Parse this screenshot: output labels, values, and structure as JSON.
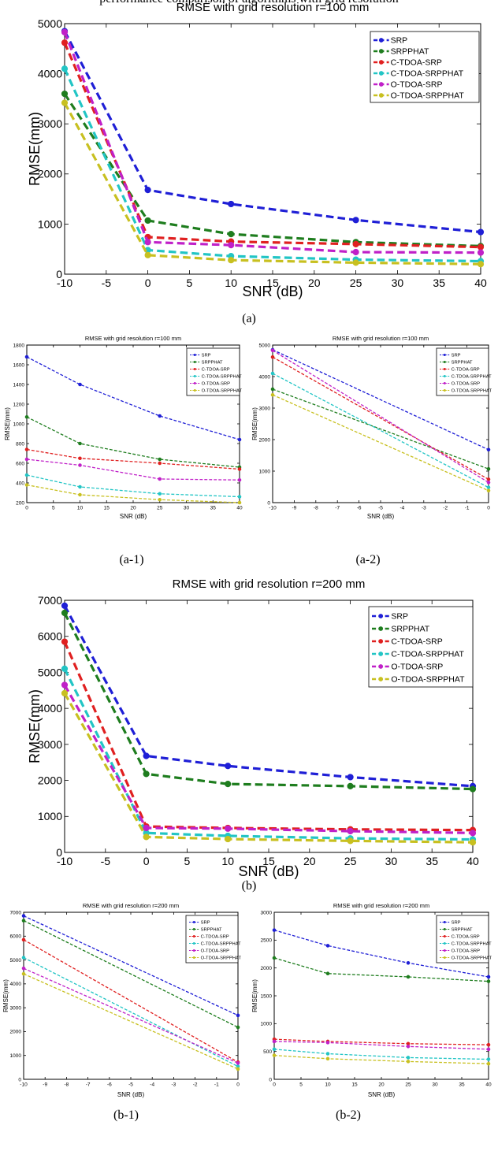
{
  "top_cropped_text": "performance comparison of algorithms with grid resolution",
  "series_styles": [
    {
      "name": "SRP",
      "color": "#1f1fd6"
    },
    {
      "name": "SRPPHAT",
      "color": "#1e7d1e"
    },
    {
      "name": "C-TDOA-SRP",
      "color": "#e02020"
    },
    {
      "name": "C-TDOA-SRPPHAT",
      "color": "#22c5c5"
    },
    {
      "name": "O-TDOA-SRP",
      "color": "#c020c8"
    },
    {
      "name": "O-TDOA-SRPPHAT",
      "color": "#c8c020"
    }
  ],
  "captions": [
    "(a)",
    "(a-1)",
    "(a-2)",
    "(b)",
    "(b-1)",
    "(b-2)"
  ],
  "chart_data": [
    {
      "id": "a",
      "type": "line",
      "title": "RMSE with grid resolution r=100 mm",
      "xlabel": "SNR (dB)",
      "ylabel": "RMSE(mm)",
      "xlim": [
        -10,
        40
      ],
      "ylim": [
        0,
        5000
      ],
      "xticks": [
        -10,
        -5,
        0,
        5,
        10,
        15,
        20,
        25,
        30,
        35,
        40
      ],
      "yticks": [
        0,
        1000,
        2000,
        3000,
        4000,
        5000
      ],
      "x": [
        -10,
        0,
        10,
        25,
        40
      ],
      "legend": "top-right",
      "series": [
        {
          "name": "SRP",
          "values": [
            4850,
            1680,
            1400,
            1080,
            840
          ]
        },
        {
          "name": "SRPPHAT",
          "values": [
            3600,
            1070,
            800,
            640,
            560
          ]
        },
        {
          "name": "C-TDOA-SRP",
          "values": [
            4620,
            740,
            650,
            600,
            540
          ]
        },
        {
          "name": "C-TDOA-SRPPHAT",
          "values": [
            4100,
            480,
            360,
            290,
            260
          ]
        },
        {
          "name": "O-TDOA-SRP",
          "values": [
            4830,
            640,
            580,
            440,
            430
          ]
        },
        {
          "name": "O-TDOA-SRPPHAT",
          "values": [
            3420,
            380,
            280,
            230,
            200
          ]
        }
      ]
    },
    {
      "id": "a-1",
      "type": "line",
      "title": "RMSE with grid resolution r=100 mm",
      "xlabel": "SNR (dB)",
      "ylabel": "RMSE(mm)",
      "xlim": [
        0,
        40
      ],
      "ylim": [
        200,
        1800
      ],
      "xticks": [
        0,
        5,
        10,
        15,
        20,
        25,
        30,
        35,
        40
      ],
      "yticks": [
        200,
        400,
        600,
        800,
        1000,
        1200,
        1400,
        1600,
        1800
      ],
      "x": [
        0,
        10,
        25,
        40
      ],
      "legend": "top-right",
      "series": [
        {
          "name": "SRP",
          "values": [
            1680,
            1400,
            1080,
            840
          ]
        },
        {
          "name": "SRPPHAT",
          "values": [
            1070,
            800,
            640,
            560
          ]
        },
        {
          "name": "C-TDOA-SRP",
          "values": [
            740,
            650,
            600,
            540
          ]
        },
        {
          "name": "C-TDOA-SRPPHAT",
          "values": [
            480,
            360,
            290,
            260
          ]
        },
        {
          "name": "O-TDOA-SRP",
          "values": [
            640,
            580,
            440,
            430
          ]
        },
        {
          "name": "O-TDOA-SRPPHAT",
          "values": [
            380,
            280,
            230,
            200
          ]
        }
      ]
    },
    {
      "id": "a-2",
      "type": "line",
      "title": "RMSE with grid resolution r=100 mm",
      "xlabel": "SNR (dB)",
      "ylabel": "RMSE(mm)",
      "xlim": [
        -10,
        0
      ],
      "ylim": [
        0,
        5000
      ],
      "xticks": [
        -10,
        -9,
        -8,
        -7,
        -6,
        -5,
        -4,
        -3,
        -2,
        -1,
        0
      ],
      "yticks": [
        0,
        1000,
        2000,
        3000,
        4000,
        5000
      ],
      "x": [
        -10,
        0
      ],
      "legend": "top-right",
      "series": [
        {
          "name": "SRP",
          "values": [
            4850,
            1680
          ]
        },
        {
          "name": "SRPPHAT",
          "values": [
            3600,
            1070
          ]
        },
        {
          "name": "C-TDOA-SRP",
          "values": [
            4620,
            740
          ]
        },
        {
          "name": "C-TDOA-SRPPHAT",
          "values": [
            4100,
            480
          ]
        },
        {
          "name": "O-TDOA-SRP",
          "values": [
            4830,
            640
          ]
        },
        {
          "name": "O-TDOA-SRPPHAT",
          "values": [
            3420,
            380
          ]
        }
      ]
    },
    {
      "id": "b",
      "type": "line",
      "title": "RMSE with grid resolution r=200 mm",
      "xlabel": "SNR (dB)",
      "ylabel": "RMSE(mm)",
      "xlim": [
        -10,
        40
      ],
      "ylim": [
        0,
        7000
      ],
      "xticks": [
        -10,
        -5,
        0,
        5,
        10,
        15,
        20,
        25,
        30,
        35,
        40
      ],
      "yticks": [
        0,
        1000,
        2000,
        3000,
        4000,
        5000,
        6000,
        7000
      ],
      "x": [
        -10,
        0,
        10,
        25,
        40
      ],
      "legend": "top-right",
      "series": [
        {
          "name": "SRP",
          "values": [
            6850,
            2680,
            2400,
            2090,
            1840
          ]
        },
        {
          "name": "SRPPHAT",
          "values": [
            6650,
            2180,
            1900,
            1840,
            1760
          ]
        },
        {
          "name": "C-TDOA-SRP",
          "values": [
            5850,
            720,
            680,
            640,
            620
          ]
        },
        {
          "name": "C-TDOA-SRPPHAT",
          "values": [
            5100,
            540,
            460,
            390,
            360
          ]
        },
        {
          "name": "O-TDOA-SRP",
          "values": [
            4650,
            680,
            660,
            590,
            540
          ]
        },
        {
          "name": "O-TDOA-SRPPHAT",
          "values": [
            4420,
            430,
            370,
            320,
            280
          ]
        }
      ]
    },
    {
      "id": "b-1",
      "type": "line",
      "title": "RMSE with grid resolution r=200 mm",
      "xlabel": "SNR (dB)",
      "ylabel": "RMSE(mm)",
      "xlim": [
        -10,
        0
      ],
      "ylim": [
        0,
        7000
      ],
      "xticks": [
        -10,
        -9,
        -8,
        -7,
        -6,
        -5,
        -4,
        -3,
        -2,
        -1,
        0
      ],
      "yticks": [
        0,
        1000,
        2000,
        3000,
        4000,
        5000,
        6000,
        7000
      ],
      "x": [
        -10,
        0
      ],
      "legend": "top-right",
      "series": [
        {
          "name": "SRP",
          "values": [
            6850,
            2680
          ]
        },
        {
          "name": "SRPPHAT",
          "values": [
            6650,
            2180
          ]
        },
        {
          "name": "C-TDOA-SRP",
          "values": [
            5850,
            720
          ]
        },
        {
          "name": "C-TDOA-SRPPHAT",
          "values": [
            5100,
            540
          ]
        },
        {
          "name": "O-TDOA-SRP",
          "values": [
            4650,
            680
          ]
        },
        {
          "name": "O-TDOA-SRPPHAT",
          "values": [
            4420,
            430
          ]
        }
      ]
    },
    {
      "id": "b-2",
      "type": "line",
      "title": "RMSE with grid resolution r=200 mm",
      "xlabel": "SNR (dB)",
      "ylabel": "RMSE(mm)",
      "xlim": [
        0,
        40
      ],
      "ylim": [
        0,
        3000
      ],
      "xticks": [
        0,
        5,
        10,
        15,
        20,
        25,
        30,
        35,
        40
      ],
      "yticks": [
        0,
        500,
        1000,
        1500,
        2000,
        2500,
        3000
      ],
      "x": [
        0,
        10,
        25,
        40
      ],
      "legend": "top-right",
      "series": [
        {
          "name": "SRP",
          "values": [
            2680,
            2400,
            2090,
            1840
          ]
        },
        {
          "name": "SRPPHAT",
          "values": [
            2180,
            1900,
            1840,
            1760
          ]
        },
        {
          "name": "C-TDOA-SRP",
          "values": [
            720,
            680,
            640,
            620
          ]
        },
        {
          "name": "C-TDOA-SRPPHAT",
          "values": [
            540,
            460,
            390,
            360
          ]
        },
        {
          "name": "O-TDOA-SRP",
          "values": [
            680,
            660,
            590,
            540
          ]
        },
        {
          "name": "O-TDOA-SRPPHAT",
          "values": [
            430,
            370,
            320,
            280
          ]
        }
      ]
    }
  ]
}
